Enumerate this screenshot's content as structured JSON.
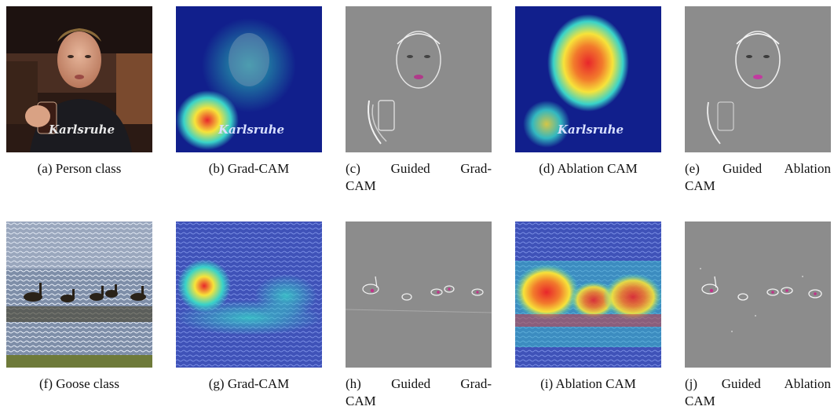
{
  "figure": {
    "rows": [
      {
        "panels": [
          {
            "id": "a",
            "caption": "(a) Person class",
            "kind": "photo-person"
          },
          {
            "id": "b",
            "caption": "(b) Grad-CAM",
            "kind": "gradcam-person"
          },
          {
            "id": "c",
            "caption_line1": "(c)   Guided   Grad-",
            "caption_line2": "CAM",
            "kind": "guided-person"
          },
          {
            "id": "d",
            "caption": "(d) Ablation CAM",
            "kind": "ablation-person"
          },
          {
            "id": "e",
            "caption_line1": "(e)  Guided  Ablation",
            "caption_line2": "CAM",
            "kind": "guided-person"
          }
        ],
        "shirt_text": "Karlsruhe"
      },
      {
        "panels": [
          {
            "id": "f",
            "caption": "(f) Goose class",
            "kind": "photo-goose"
          },
          {
            "id": "g",
            "caption": "(g) Grad-CAM",
            "kind": "gradcam-goose"
          },
          {
            "id": "h",
            "caption_line1": "(h)   Guided   Grad-",
            "caption_line2": "CAM",
            "kind": "guided-goose"
          },
          {
            "id": "i",
            "caption": "(i) Ablation CAM",
            "kind": "ablation-goose"
          },
          {
            "id": "j",
            "caption_line1": "(j)  Guided  Ablation",
            "caption_line2": "CAM",
            "kind": "guided-goose"
          }
        ]
      }
    ]
  },
  "colors": {
    "heat_red": "#e8262b",
    "heat_yellow": "#f7e33a",
    "heat_cyan": "#39d3c9",
    "heat_blue": "#1628a8",
    "guided_gray": "#8c8c8c"
  }
}
